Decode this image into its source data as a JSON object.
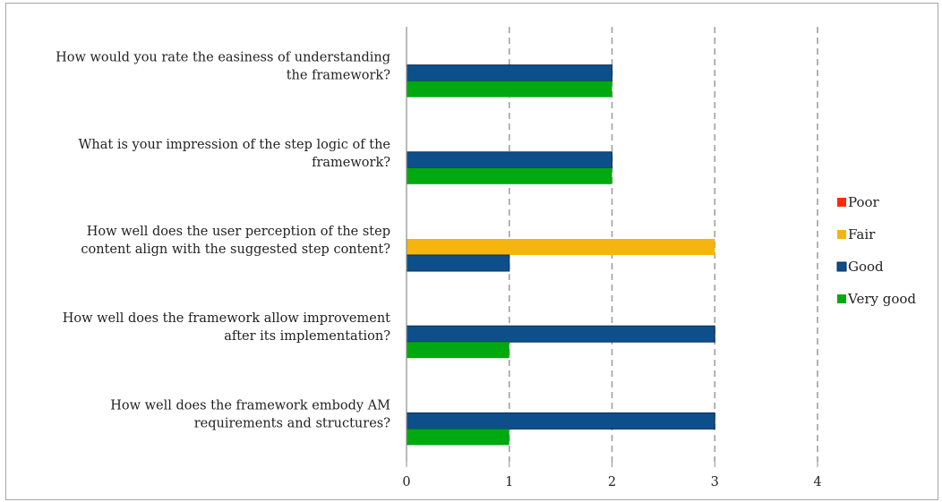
{
  "chart_data": {
    "type": "bar",
    "orientation": "horizontal",
    "title": "",
    "xlabel": "",
    "ylabel": "",
    "categories": [
      [
        "How would you rate the easiness of understanding",
        "the framework?"
      ],
      [
        "What is your impression of the step logic of the",
        "framework?"
      ],
      [
        "How well does the user perception of the step",
        "content align with the suggested step content?"
      ],
      [
        "How well does the framework allow improvement",
        "after its implementation?"
      ],
      [
        "How well does the framework embody AM",
        "requirements and structures?"
      ]
    ],
    "series": [
      {
        "name": "Poor",
        "color": "#ff2a00",
        "values": [
          0,
          0,
          0,
          0,
          0
        ]
      },
      {
        "name": "Fair",
        "color": "#f5b50e",
        "values": [
          0,
          0,
          3,
          0,
          0
        ]
      },
      {
        "name": "Good",
        "color": "#0d4f8b",
        "values": [
          2,
          2,
          1,
          3,
          3
        ]
      },
      {
        "name": "Very good",
        "color": "#00a90f",
        "values": [
          2,
          2,
          0,
          1,
          1
        ]
      }
    ],
    "xlim": [
      0,
      4
    ],
    "xticks": [
      "0",
      "1",
      "2",
      "3",
      "4"
    ],
    "grid": "vertical-dashed",
    "legend_position": "right"
  }
}
